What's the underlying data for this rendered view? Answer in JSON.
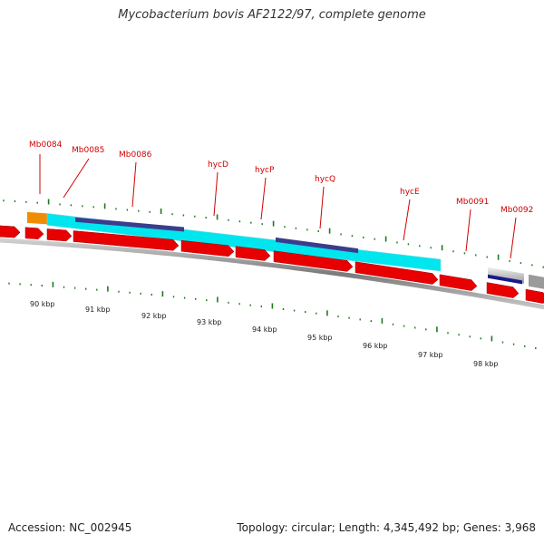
{
  "title": "Mycobacterium bovis AF2122/97, complete genome",
  "footer": {
    "accession": "Accession: NC_002945",
    "summary": "Topology: circular; Length: 4,345,492 bp; Genes: 3,968"
  },
  "colors": {
    "cds": "#e80000",
    "gene": "#00e6ee",
    "domain": "#3c3c8c",
    "label": "#d00000",
    "tick": "#1e7a1e",
    "backbone": "#8a8a8a",
    "orange_feature": "#f08c00",
    "navy_feature": "#1a1a8c"
  },
  "gene_labels": [
    "Mb0084",
    "Mb0085",
    "Mb0086",
    "hycD",
    "hycP",
    "hycQ",
    "hycE",
    "Mb0091",
    "Mb0092"
  ],
  "kbp_labels": [
    "90 kbp",
    "91 kbp",
    "92 kbp",
    "93 kbp",
    "94 kbp",
    "95 kbp",
    "96 kbp",
    "97 kbp",
    "98 kbp"
  ]
}
